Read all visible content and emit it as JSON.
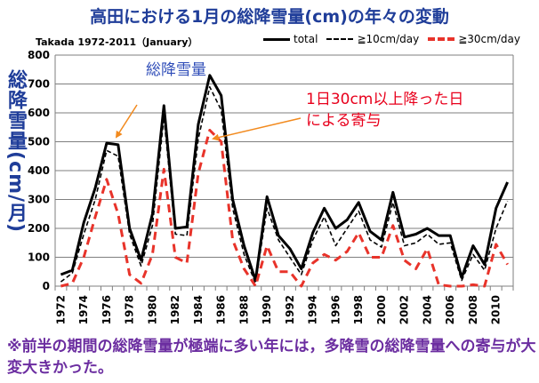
{
  "page": {
    "title": "高田における1月の総降雪量(cm)の年々の変動",
    "footnote": "※前半の期間の総降雪量が極端に多い年には，多降雪の総降雪量への寄与が大変大きかった。"
  },
  "annotations": {
    "total_label": "総降雪量",
    "heavy_label": "1日30cm以上降った日による寄与"
  },
  "chart_data": {
    "type": "line",
    "title": "Takada 1972-2011（January）",
    "xlabel": "",
    "ylabel": "総降雪量(cm/月)",
    "ylim": [
      0,
      800
    ],
    "yticks": [
      0,
      100,
      200,
      300,
      400,
      500,
      600,
      700,
      800
    ],
    "xlim": [
      1972,
      2011
    ],
    "xticks": [
      1972,
      1974,
      1976,
      1978,
      1980,
      1982,
      1984,
      1986,
      1988,
      1990,
      1992,
      1994,
      1996,
      1998,
      2000,
      2002,
      2004,
      2006,
      2008,
      2010
    ],
    "grid": true,
    "legend_position": "top",
    "x": [
      1972,
      1973,
      1974,
      1975,
      1976,
      1977,
      1978,
      1979,
      1980,
      1981,
      1982,
      1983,
      1984,
      1985,
      1986,
      1987,
      1988,
      1989,
      1990,
      1991,
      1992,
      1993,
      1994,
      1995,
      1996,
      1997,
      1998,
      1999,
      2000,
      2001,
      2002,
      2003,
      2004,
      2005,
      2006,
      2007,
      2008,
      2009,
      2010,
      2011
    ],
    "series": [
      {
        "name": "total",
        "color": "#000000",
        "style": "solid",
        "values": [
          40,
          55,
          220,
          340,
          495,
          490,
          200,
          90,
          250,
          625,
          200,
          205,
          560,
          730,
          660,
          300,
          140,
          20,
          310,
          175,
          130,
          60,
          185,
          270,
          200,
          230,
          290,
          190,
          160,
          325,
          170,
          180,
          200,
          175,
          175,
          30,
          140,
          75,
          270,
          360
        ]
      },
      {
        "name": "≧10cm/day",
        "color": "#000000",
        "style": "dashed",
        "values": [
          15,
          45,
          180,
          300,
          470,
          450,
          180,
          70,
          210,
          585,
          180,
          175,
          510,
          690,
          610,
          270,
          110,
          10,
          270,
          160,
          100,
          40,
          160,
          240,
          140,
          200,
          260,
          160,
          135,
          290,
          140,
          150,
          180,
          145,
          150,
          20,
          110,
          55,
          200,
          295
        ]
      },
      {
        "name": "≧30cm/day",
        "color": "#e8332a",
        "style": "dashed",
        "values": [
          0,
          10,
          100,
          240,
          370,
          250,
          40,
          10,
          110,
          405,
          100,
          80,
          390,
          540,
          500,
          160,
          60,
          0,
          140,
          50,
          50,
          0,
          80,
          110,
          90,
          120,
          185,
          100,
          100,
          210,
          90,
          60,
          130,
          5,
          0,
          0,
          5,
          0,
          145,
          75
        ]
      }
    ]
  }
}
